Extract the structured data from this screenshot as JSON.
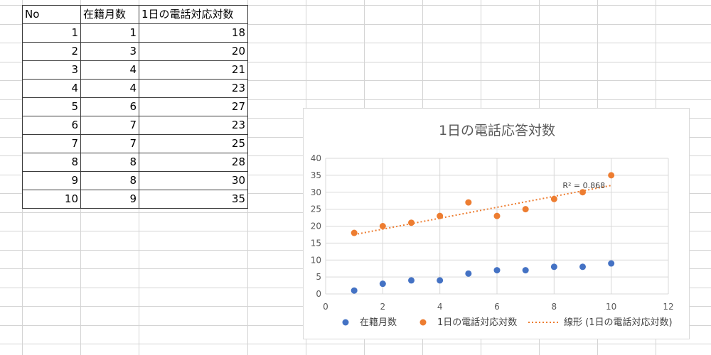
{
  "table": {
    "headers": [
      "No",
      "在籍月数",
      "1日の電話対応対数"
    ],
    "rows": [
      [
        "1",
        "1",
        "18"
      ],
      [
        "2",
        "3",
        "20"
      ],
      [
        "3",
        "4",
        "21"
      ],
      [
        "4",
        "4",
        "23"
      ],
      [
        "5",
        "6",
        "27"
      ],
      [
        "6",
        "7",
        "23"
      ],
      [
        "7",
        "7",
        "25"
      ],
      [
        "8",
        "8",
        "28"
      ],
      [
        "9",
        "8",
        "30"
      ],
      [
        "10",
        "9",
        "35"
      ]
    ]
  },
  "chart_data": {
    "type": "scatter",
    "title": "1日の電話応答対数",
    "xlim": [
      0,
      12
    ],
    "ylim": [
      0,
      40
    ],
    "x_ticks": [
      0,
      2,
      4,
      6,
      8,
      10,
      12
    ],
    "y_ticks": [
      0,
      5,
      10,
      15,
      20,
      25,
      30,
      35,
      40
    ],
    "grid": true,
    "legend_position": "bottom",
    "series": [
      {
        "name": "在籍月数",
        "color": "#4472c4",
        "x": [
          1,
          2,
          3,
          4,
          5,
          6,
          7,
          8,
          9,
          10
        ],
        "y": [
          1,
          3,
          4,
          4,
          6,
          7,
          7,
          8,
          8,
          9
        ]
      },
      {
        "name": "1日の電話対応対数",
        "color": "#ed7d31",
        "x": [
          1,
          2,
          3,
          4,
          5,
          6,
          7,
          8,
          9,
          10
        ],
        "y": [
          18,
          20,
          21,
          23,
          27,
          23,
          25,
          28,
          30,
          35
        ]
      }
    ],
    "trendline": {
      "name": "線形 (1日の電話対応対数)",
      "color": "#ed7d31",
      "style": "dotted",
      "x": [
        1,
        10
      ],
      "y": [
        17.5,
        32
      ],
      "r2_label": "R² = 0.868"
    }
  }
}
